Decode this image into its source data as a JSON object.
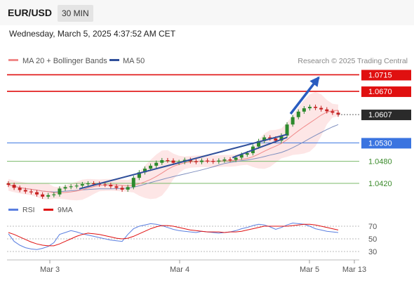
{
  "header": {
    "symbol": "EUR/USD",
    "timeframe": "30 MIN",
    "datetime": "Wednesday, March 5, 2025 4:37:52 AM CET"
  },
  "legend": {
    "ma20_label": "MA 20 + Bollinger Bands",
    "ma50_label": "MA 50",
    "source": "Research © 2025 Trading Central",
    "rsi_label": "RSI",
    "rsi_ma_label": "9MA"
  },
  "colors": {
    "resistance": "#e01010",
    "support": "#3a74e0",
    "pivot_green": "#7aba6a",
    "candle_up": "#2d8a2d",
    "candle_down": "#c62020",
    "trendline": "#2f4f9a",
    "bollinger_fill": "#fde0e0",
    "ma20": "#f08a8a",
    "ma50": "#7f8fbf",
    "rsi": "#5a7fe0",
    "rsi_ma": "#e01010",
    "current_price_box": "#2a2a2a"
  },
  "chart_data": [
    {
      "type": "candlestick",
      "ylim": [
        1.038,
        1.0735
      ],
      "x_ticks": [
        "Mar 3",
        "Mar 4",
        "Mar 5",
        "Mar 13"
      ],
      "current_price": 1.0607,
      "levels": [
        {
          "label": "1.0715",
          "value": 1.0715,
          "kind": "resistance"
        },
        {
          "label": "1.0670",
          "value": 1.067,
          "kind": "resistance"
        },
        {
          "label": "1.0530",
          "value": 1.053,
          "kind": "support"
        },
        {
          "label": "1.0480",
          "value": 1.048,
          "kind": "pivot"
        },
        {
          "label": "1.0420",
          "value": 1.042,
          "kind": "pivot"
        }
      ],
      "series_close": [
        1.0416,
        1.0408,
        1.0402,
        1.0398,
        1.0396,
        1.039,
        1.0384,
        1.0388,
        1.039,
        1.0406,
        1.041,
        1.0412,
        1.0414,
        1.0418,
        1.042,
        1.0419,
        1.0417,
        1.0416,
        1.0412,
        1.0408,
        1.0403,
        1.041,
        1.0435,
        1.045,
        1.046,
        1.0468,
        1.0476,
        1.0483,
        1.0482,
        1.0476,
        1.0478,
        1.0484,
        1.048,
        1.0478,
        1.0482,
        1.0481,
        1.0479,
        1.0482,
        1.0485,
        1.0484,
        1.049,
        1.0498,
        1.0502,
        1.052,
        1.0535,
        1.0545,
        1.0542,
        1.0536,
        1.055,
        1.058,
        1.06,
        1.0615,
        1.0624,
        1.0628,
        1.0625,
        1.0621,
        1.0616,
        1.0612,
        1.0607
      ],
      "trendlines": [
        {
          "from": [
            0.205,
            1.0405
          ],
          "to": [
            0.795,
            1.0553
          ]
        },
        {
          "from": [
            0.64,
            1.049
          ],
          "to": [
            0.795,
            1.0545
          ]
        }
      ],
      "projection_arrow": {
        "from": [
          0.805,
          1.0609
        ],
        "to": [
          0.885,
          1.0708
        ]
      }
    },
    {
      "type": "line",
      "name": "RSI",
      "ylim": [
        20,
        80
      ],
      "y_ticks": [
        70,
        50,
        30
      ],
      "series": [
        {
          "name": "RSI",
          "values": [
            58,
            46,
            40,
            36,
            34,
            33,
            35,
            38,
            44,
            57,
            60,
            63,
            61,
            58,
            56,
            54,
            52,
            50,
            48,
            47,
            46,
            57,
            66,
            70,
            72,
            74,
            73,
            71,
            68,
            65,
            63,
            62,
            61,
            60,
            62,
            61,
            60,
            59,
            60,
            61,
            63,
            66,
            68,
            71,
            73,
            72,
            69,
            65,
            68,
            72,
            75,
            74,
            73,
            70,
            66,
            64,
            62,
            61,
            60
          ]
        },
        {
          "name": "9MA",
          "values": [
            60,
            57,
            53,
            49,
            45,
            42,
            40,
            39,
            39,
            42,
            46,
            50,
            54,
            57,
            59,
            58,
            57,
            55,
            53,
            51,
            50,
            51,
            54,
            58,
            62,
            66,
            69,
            71,
            71,
            70,
            68,
            66,
            64,
            63,
            62,
            61,
            61,
            61,
            60,
            61,
            61,
            62,
            64,
            66,
            68,
            70,
            70,
            70,
            70,
            70,
            71,
            72,
            73,
            73,
            72,
            70,
            68,
            66,
            64
          ]
        }
      ]
    }
  ]
}
